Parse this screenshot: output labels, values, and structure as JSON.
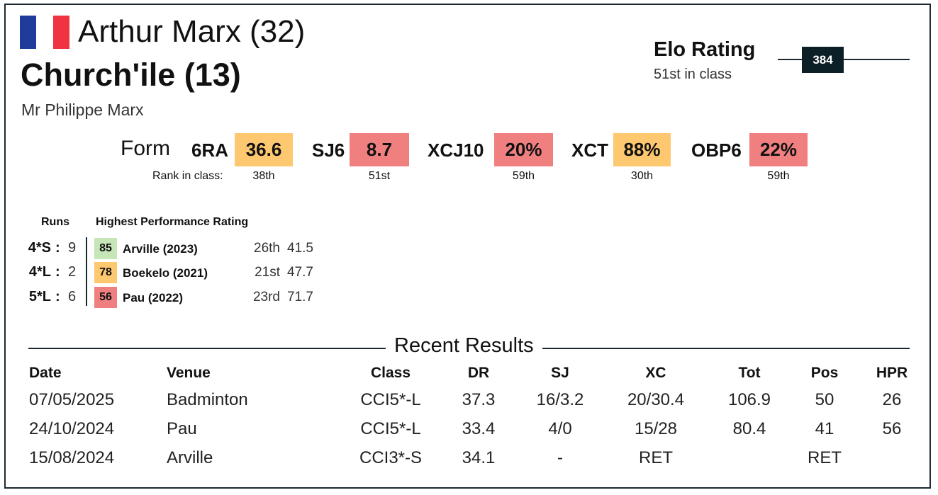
{
  "rider": "Arthur Marx (32)",
  "horse": "Church'ile (13)",
  "owner": "Mr Philippe Marx",
  "elo": {
    "label": "Elo Rating",
    "rank": "51st in class",
    "value": "384"
  },
  "form": {
    "label": "Form",
    "rank_label": "Rank in class:",
    "items": [
      {
        "name": "6RA",
        "value": "36.6",
        "rank": "38th",
        "color": "#fdc86f"
      },
      {
        "name": "SJ6",
        "value": "8.7",
        "rank": "51st",
        "color": "#f08080"
      },
      {
        "name": "XCJ10",
        "value": "20%",
        "rank": "59th",
        "color": "#f08080"
      },
      {
        "name": "XCT",
        "value": "88%",
        "rank": "30th",
        "color": "#fdc86f"
      },
      {
        "name": "OBP6",
        "value": "22%",
        "rank": "59th",
        "color": "#f08080"
      }
    ]
  },
  "runs": {
    "header_runs": "Runs",
    "header_hpr": "Highest Performance Rating",
    "separator": ":",
    "rows": [
      {
        "level": "4*S",
        "count": "9",
        "hpr": "85",
        "color": "#c6e6b8",
        "venue": "Arville (2023)",
        "rank": "26th",
        "score": "41.5"
      },
      {
        "level": "4*L",
        "count": "2",
        "hpr": "78",
        "color": "#fdc86f",
        "venue": "Boekelo (2021)",
        "rank": "21st",
        "score": "47.7"
      },
      {
        "level": "5*L",
        "count": "6",
        "hpr": "56",
        "color": "#f08080",
        "venue": "Pau (2022)",
        "rank": "23rd",
        "score": "71.7"
      }
    ]
  },
  "results": {
    "title": "Recent Results",
    "columns": [
      "Date",
      "Venue",
      "Class",
      "DR",
      "SJ",
      "XC",
      "Tot",
      "Pos",
      "HPR"
    ],
    "rows": [
      [
        "07/05/2025",
        "Badminton",
        "CCI5*-L",
        "37.3",
        "16/3.2",
        "20/30.4",
        "106.9",
        "50",
        "26"
      ],
      [
        "24/10/2024",
        "Pau",
        "CCI5*-L",
        "33.4",
        "4/0",
        "15/28",
        "80.4",
        "41",
        "56"
      ],
      [
        "15/08/2024",
        "Arville",
        "CCI3*-S",
        "34.1",
        "-",
        "RET",
        null,
        "RET",
        null
      ]
    ]
  }
}
